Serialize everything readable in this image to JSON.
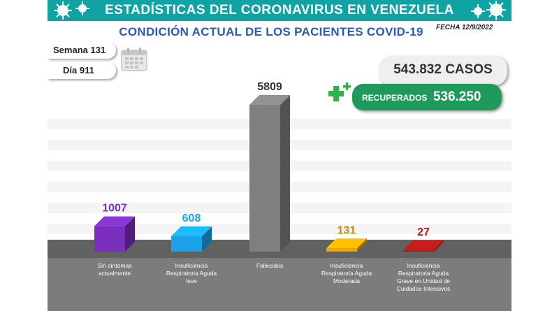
{
  "header": {
    "title": "ESTADÍSTICAS DEL CORONAVIRUS EN VENEZUELA",
    "subtitle": "CONDICIÓN ACTUAL DE LOS PACIENTES COVID-19",
    "date": "FECHA 12/9/2022"
  },
  "info": {
    "week": "Semana 131",
    "day": "Día 911",
    "cases": "543.832 CASOS",
    "recovered_label": "RECUPERADOS",
    "recovered_value": "536.250"
  },
  "icons": [
    "virus-icon",
    "calendar-icon",
    "plus-icon"
  ],
  "colors": {
    "header": "#0fa3a3",
    "subtitle": "#2a59b6",
    "recovered": "#1e9a5a",
    "floor": "#7c7c7c"
  },
  "chart_data": {
    "type": "bar",
    "categories": [
      "Sin síntomas actualmente",
      "Insuficiencia Respiratoria Aguda leve",
      "Fallecidos",
      "Insuficiencia Respiratoria Aguda Moderada",
      "Insuficiencia Respiratoria Aguda Grave en Unidad de Cuidados Intensivos"
    ],
    "category_lines": [
      [
        "Sin síntomas",
        "actualmente"
      ],
      [
        "Insuficiencia",
        "Respiratoria Aguda",
        "leve"
      ],
      [
        "Fallecidos"
      ],
      [
        "Insuficiencia",
        "Respiratoria Aguda",
        "Moderada"
      ],
      [
        "Insuficiencia",
        "Respiratoria Aguda",
        "Grave en Unidad de",
        "Cuidados Intensivos"
      ]
    ],
    "values": [
      1007,
      608,
      5809,
      131,
      27
    ],
    "value_labels": [
      "1007",
      "608",
      "5809",
      "131",
      "27"
    ],
    "colors": [
      "#7b2fbe",
      "#1aa3e8",
      "#7f7f7f",
      "#f0a800",
      "#b01818"
    ],
    "label_colors": [
      "#7b2fbe",
      "#1aa3e8",
      "#333333",
      "#c98a00",
      "#b01818"
    ],
    "grid": true,
    "legend": "none"
  }
}
